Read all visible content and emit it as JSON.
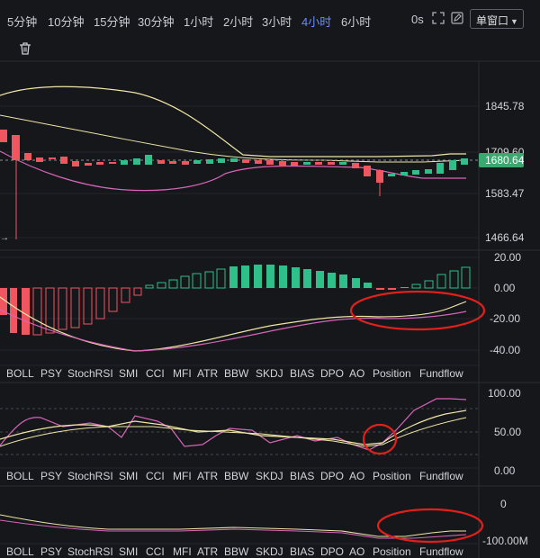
{
  "toolbar": {
    "timeframes": [
      {
        "label": "5分钟",
        "active": false
      },
      {
        "label": "10分钟",
        "active": false
      },
      {
        "label": "15分钟",
        "active": false
      },
      {
        "label": "30分钟",
        "active": false
      },
      {
        "label": "1小时",
        "active": false
      },
      {
        "label": "2小时",
        "active": false
      },
      {
        "label": "3小时",
        "active": false
      },
      {
        "label": "4小时",
        "active": true
      },
      {
        "label": "6小时",
        "active": false
      }
    ],
    "countdown": "0s",
    "single_window": "单窗口",
    "icons": [
      "fullscreen-icon",
      "edit-icon",
      "trash-icon"
    ],
    "accent": "#6c8cff"
  },
  "price_panel": {
    "y_ticks": [
      "1845.78",
      "1709.60",
      "1583.47",
      "1466.64"
    ],
    "current_price": "1680.64",
    "current_price_color": "#3ba86f",
    "arrow": "→"
  },
  "macd_panel": {
    "y_ticks": [
      "20.00",
      "0.00",
      "-20.00",
      "-40.00"
    ]
  },
  "kdj_panel": {
    "y_ticks": [
      "100.00",
      "50.00",
      "0.00"
    ]
  },
  "fund_panel": {
    "y_ticks": [
      "0",
      "-100.00M"
    ]
  },
  "indicator_tabs": [
    "BOLL",
    "PSY",
    "StochRSI",
    "SMI",
    "CCI",
    "MFI",
    "ATR",
    "BBW",
    "SKDJ",
    "BIAS",
    "DPO",
    "AO",
    "Position",
    "Fundflow"
  ],
  "colors": {
    "up": "#2fbf8a",
    "down": "#f0565f",
    "annotation": "#e0201a",
    "line_yellow": "#efe6a6",
    "line_pink": "#d864b8"
  }
}
